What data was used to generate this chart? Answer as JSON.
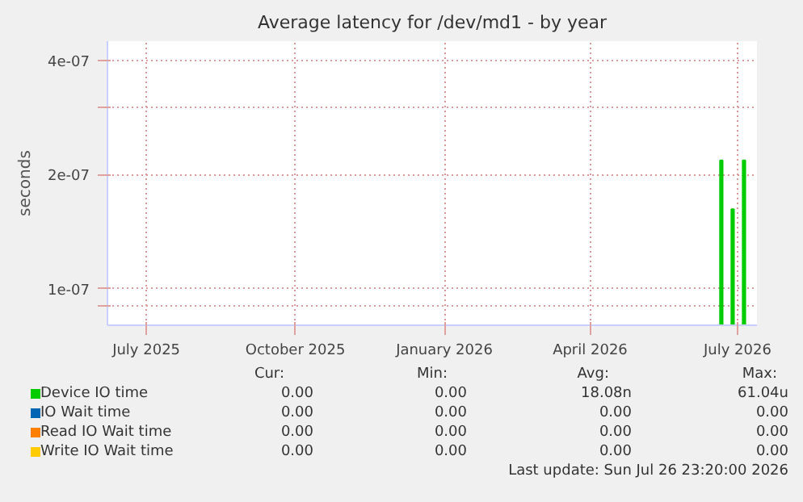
{
  "chart_data": {
    "type": "bar",
    "title": "Average latency for /dev/md1 - by year",
    "ylabel": "seconds",
    "log": true,
    "grid": true,
    "legend": "bottom",
    "xlim": [
      "2025-06-22",
      "2026-07-28"
    ],
    "ylim": [
      8e-08,
      4.5e-07
    ],
    "xticks": [
      {
        "value": "2025-07-16",
        "label": "July 2025"
      },
      {
        "value": "2025-10-16",
        "label": "October 2025"
      },
      {
        "value": "2026-01-16",
        "label": "January 2026"
      },
      {
        "value": "2026-04-16",
        "label": "April 2026"
      },
      {
        "value": "2026-07-16",
        "label": "July 2026"
      }
    ],
    "yticks": [
      {
        "value": 9e-08,
        "label": null
      },
      {
        "value": 1e-07,
        "label": "1e-07"
      },
      {
        "value": 2e-07,
        "label": "2e-07"
      },
      {
        "value": 3e-07,
        "label": null
      },
      {
        "value": 4e-07,
        "label": "4e-07"
      }
    ],
    "series": [
      {
        "name": "Device IO time",
        "color": "#00cc00",
        "x": [
          "2026-07-06",
          "2026-07-13",
          "2026-07-20"
        ],
        "values": [
          2.18e-07,
          1.62e-07,
          2.18e-07
        ]
      },
      {
        "name": "IO Wait time",
        "color": "#0066b3"
      },
      {
        "name": "Read IO Wait time",
        "color": "#ff8000"
      },
      {
        "name": "Write IO Wait time",
        "color": "#ffcc00"
      }
    ],
    "annotations": [
      "Cur:",
      "Min:",
      "Avg:",
      "Max:",
      "0.00",
      "0.00",
      "18.08n",
      "61.04u",
      "0.00",
      "0.00",
      "0.00",
      "0.00",
      "0.00",
      "0.00",
      "0.00",
      "0.00",
      "0.00",
      "0.00",
      "0.00",
      "0.00",
      "Last update: Sun Jul 26 23:20:00 2026"
    ]
  }
}
